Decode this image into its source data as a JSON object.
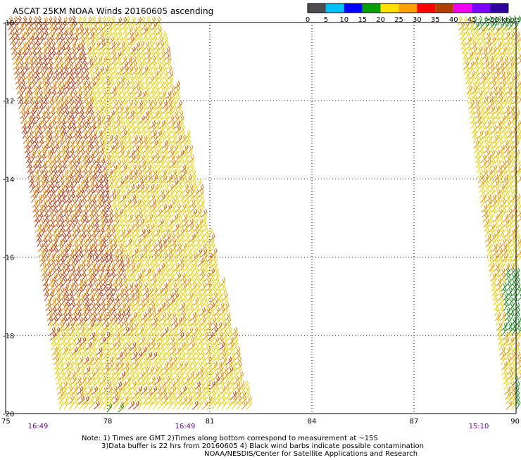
{
  "title": "ASCAT 25KM NOAA Winds 20160605 ascending",
  "color_scale": {
    "labels": [
      "0",
      "5",
      "10",
      "15",
      "20",
      "25",
      "30",
      "35",
      "40",
      "45",
      ">50 knots"
    ],
    "colors": [
      "#4d4d4d",
      "#00bfff",
      "#0000ff",
      "#00a000",
      "#ffe000",
      "#ffa000",
      "#ff0000",
      "#b04000",
      "#f000f0",
      "#8000ff",
      "#3000a0"
    ]
  },
  "map": {
    "lon_range": [
      75,
      90
    ],
    "lat_range": [
      -20,
      -10
    ],
    "lon_ticks": [
      "75",
      "78",
      "81",
      "84",
      "87",
      "90"
    ],
    "lat_ticks": [
      "-10",
      "-12",
      "-14",
      "-16",
      "-18",
      "-20"
    ],
    "grid": "dotted"
  },
  "swath_times": [
    "16:49",
    "16:49",
    "15:10"
  ],
  "notes": {
    "line1": "Note: 1) Times are GMT 2)Times along bottom correspond to measurement at ~15S",
    "line2": "3)Data buffer is 22 hrs from 20160605 4) Black wind barbs indicate possible contamination",
    "line3": "NOAA/NESDIS/Center for Satellite Applications and Research"
  },
  "wind_colors": {
    "yellow": "#e8d000",
    "orange": "#e09000",
    "dark_orange": "#c86010",
    "brown_red": "#b03818",
    "green": "#1a8a1a"
  }
}
